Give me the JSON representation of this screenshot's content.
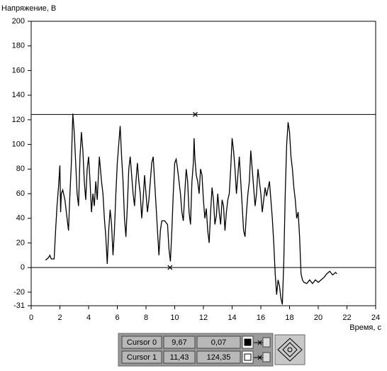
{
  "chart_data": {
    "type": "line",
    "x_label": "Время, с",
    "y_label": "Напряжение, В",
    "x": [
      1.0,
      1.2,
      1.3,
      1.4,
      1.6,
      1.7,
      1.8,
      1.9,
      2.0,
      2.05,
      2.1,
      2.2,
      2.35,
      2.5,
      2.6,
      2.7,
      2.8,
      2.9,
      3.0,
      3.1,
      3.2,
      3.3,
      3.4,
      3.5,
      3.6,
      3.7,
      3.8,
      3.9,
      4.0,
      4.1,
      4.2,
      4.3,
      4.4,
      4.5,
      4.6,
      4.75,
      4.9,
      5.0,
      5.1,
      5.2,
      5.3,
      5.4,
      5.5,
      5.6,
      5.7,
      5.8,
      5.9,
      6.0,
      6.1,
      6.2,
      6.3,
      6.4,
      6.5,
      6.6,
      6.7,
      6.8,
      6.9,
      7.0,
      7.1,
      7.2,
      7.3,
      7.4,
      7.5,
      7.6,
      7.7,
      7.8,
      7.9,
      8.0,
      8.1,
      8.2,
      8.3,
      8.4,
      8.5,
      8.6,
      8.7,
      8.8,
      8.9,
      9.0,
      9.1,
      9.3,
      9.5,
      9.6,
      9.7,
      9.8,
      9.9,
      10.0,
      10.1,
      10.2,
      10.4,
      10.5,
      10.6,
      10.7,
      10.8,
      10.9,
      11.0,
      11.1,
      11.2,
      11.3,
      11.35,
      11.4,
      11.5,
      11.6,
      11.7,
      11.8,
      11.9,
      12.0,
      12.1,
      12.2,
      12.3,
      12.4,
      12.5,
      12.6,
      12.7,
      12.8,
      12.9,
      13.0,
      13.1,
      13.2,
      13.3,
      13.4,
      13.5,
      13.6,
      13.7,
      13.8,
      13.9,
      14.0,
      14.1,
      14.2,
      14.3,
      14.4,
      14.5,
      14.6,
      14.7,
      14.8,
      14.9,
      15.0,
      15.1,
      15.2,
      15.3,
      15.4,
      15.5,
      15.6,
      15.7,
      15.8,
      15.9,
      16.0,
      16.1,
      16.3,
      16.4,
      16.6,
      16.8,
      16.9,
      17.0,
      17.1,
      17.2,
      17.3,
      17.4,
      17.5,
      17.6,
      17.7,
      17.8,
      17.9,
      18.0,
      18.1,
      18.2,
      18.3,
      18.4,
      18.5,
      18.6,
      18.7,
      18.8,
      18.9,
      19.0,
      19.2,
      19.4,
      19.6,
      19.8,
      20.0,
      20.2,
      20.4,
      20.6,
      20.8,
      21.0,
      21.2,
      21.3
    ],
    "series": [
      {
        "color": "#000000",
        "values": [
          6,
          8,
          10,
          7,
          7,
          30,
          50,
          65,
          83,
          45,
          60,
          63,
          55,
          40,
          30,
          60,
          85,
          125,
          110,
          85,
          60,
          50,
          90,
          110,
          95,
          70,
          55,
          80,
          90,
          70,
          45,
          60,
          50,
          70,
          55,
          90,
          70,
          60,
          40,
          25,
          3,
          30,
          47,
          35,
          10,
          30,
          60,
          85,
          100,
          115,
          90,
          70,
          40,
          25,
          50,
          80,
          90,
          75,
          60,
          50,
          70,
          85,
          70,
          60,
          40,
          55,
          75,
          60,
          45,
          55,
          70,
          85,
          90,
          70,
          50,
          30,
          10,
          30,
          38,
          38,
          35,
          15,
          5,
          30,
          60,
          85,
          88,
          80,
          60,
          45,
          38,
          60,
          80,
          70,
          45,
          35,
          70,
          85,
          105,
          90,
          75,
          70,
          60,
          80,
          75,
          55,
          40,
          48,
          30,
          20,
          45,
          65,
          55,
          35,
          42,
          60,
          45,
          35,
          55,
          50,
          30,
          45,
          55,
          60,
          80,
          105,
          95,
          80,
          60,
          75,
          90,
          70,
          50,
          30,
          25,
          45,
          60,
          70,
          95,
          80,
          65,
          50,
          60,
          80,
          70,
          60,
          45,
          65,
          58,
          70,
          40,
          20,
          -5,
          -22,
          -10,
          -15,
          -25,
          -30,
          5,
          60,
          100,
          118,
          110,
          90,
          80,
          65,
          55,
          40,
          45,
          25,
          -5,
          -10,
          -12,
          -13,
          -10,
          -13,
          -10,
          -12,
          -10,
          -8,
          -5,
          -3,
          -6,
          -4,
          -5
        ]
      }
    ],
    "xlim": [
      0,
      24
    ],
    "ylim": [
      -31,
      200
    ],
    "xticks": [
      0,
      2,
      4,
      6,
      8,
      10,
      12,
      14,
      16,
      18,
      20,
      22,
      24
    ],
    "yticks": [
      -31,
      -20,
      0,
      20,
      40,
      60,
      80,
      100,
      120,
      140,
      160,
      180,
      200
    ],
    "cursors": [
      {
        "name": "Cursor 0",
        "x": 9.67,
        "y": 0.07,
        "x_label": "9,67",
        "y_label": "0,07",
        "color": "#000000"
      },
      {
        "name": "Cursor 1",
        "x": 11.43,
        "y": 124.35,
        "x_label": "11,43",
        "y_label": "124,35",
        "color": "#ffffff"
      }
    ]
  }
}
